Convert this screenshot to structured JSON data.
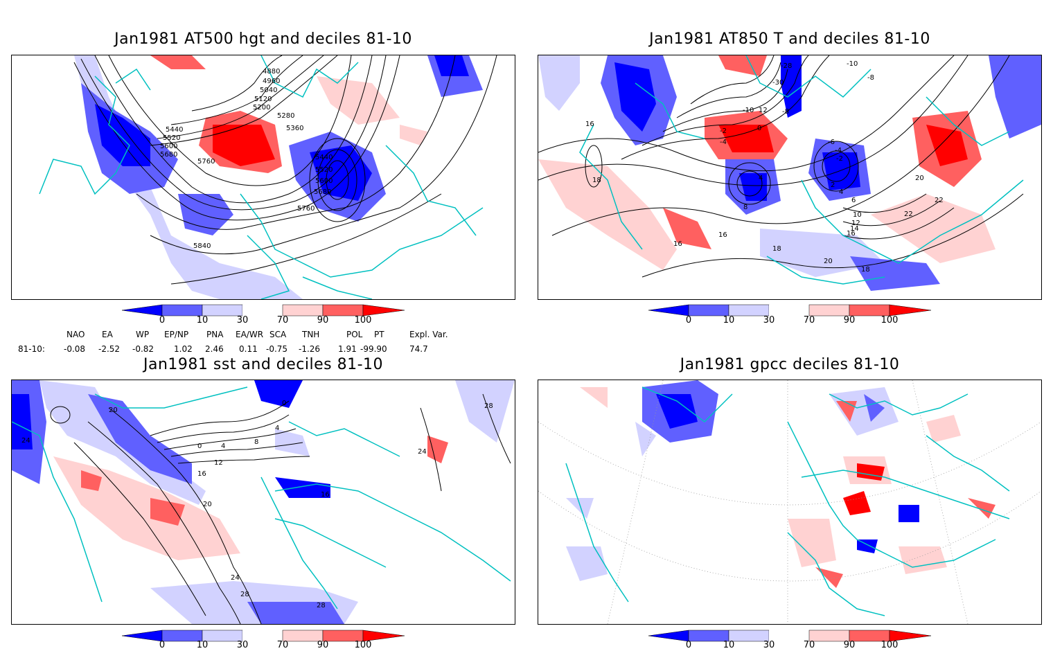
{
  "panels": [
    {
      "title": "Jan1981 AT500 hgt and deciles 81-10",
      "contour_labels": [
        "4880",
        "4960",
        "5040",
        "5120",
        "5200",
        "5280",
        "5360",
        "5440",
        "5520",
        "5600",
        "5680",
        "5760",
        "5440",
        "5520",
        "5600",
        "5680",
        "5760",
        "5840"
      ]
    },
    {
      "title": "Jan1981 AT850 T and deciles 81-10",
      "contour_labels": [
        "-28",
        "-30",
        "-10",
        "-8",
        "-10",
        "12",
        "-8",
        "-2",
        "0",
        "-4",
        "-6",
        "-4",
        "-2",
        "2",
        "4",
        "4",
        "6",
        "8",
        "10",
        "12",
        "14",
        "16",
        "16",
        "16",
        "18",
        "18",
        "18",
        "20",
        "20",
        "22",
        "22",
        "16"
      ]
    },
    {
      "title": "Jan1981 sst and deciles 81-10",
      "contour_labels": [
        "20",
        "24",
        "0",
        "4",
        "8",
        "12",
        "16",
        "20",
        "24",
        "28",
        "28",
        "0",
        "4",
        "16",
        "24",
        "28"
      ]
    },
    {
      "title": "Jan1981 gpcc deciles 81-10",
      "contour_labels": []
    }
  ],
  "colorbar": {
    "ticks": [
      "0",
      "10",
      "30",
      "70",
      "90",
      "100"
    ],
    "colors": [
      "#0000ff",
      "#6060ff",
      "#d2d2ff",
      "#ffffff",
      "#ffd2d2",
      "#ff6060",
      "#ff0000"
    ]
  },
  "indices": {
    "headers": [
      "NAO",
      "EA",
      "WP",
      "EP/NP",
      "PNA",
      "EA/WR",
      "SCA",
      "TNH",
      "POL",
      "PT",
      "Expl. Var."
    ],
    "row_label": "81-10:",
    "values": [
      "-0.08",
      "-2.52",
      "-0.82",
      "1.02",
      "2.46",
      "0.11",
      "-0.75",
      "-1.26",
      "1.91",
      "-99.90",
      "74.7"
    ]
  }
}
